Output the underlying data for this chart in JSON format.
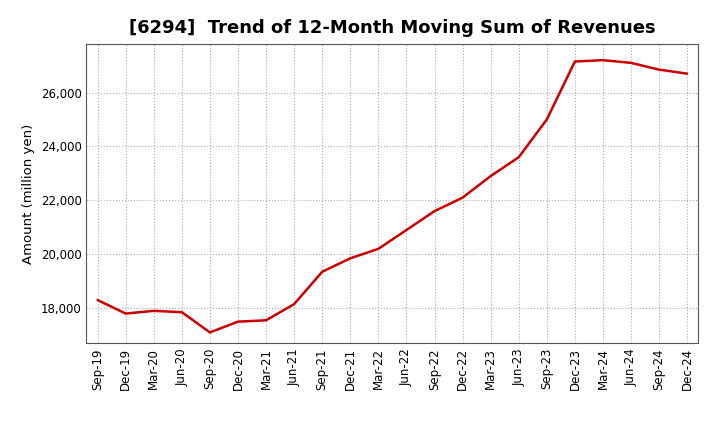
{
  "title": "[6294]  Trend of 12-Month Moving Sum of Revenues",
  "ylabel": "Amount (million yen)",
  "line_color": "#cc0000",
  "background_color": "#ffffff",
  "plot_bg_color": "#ffffff",
  "grid_color": "#aaaaaa",
  "xlabels": [
    "Sep-19",
    "Dec-19",
    "Mar-20",
    "Jun-20",
    "Sep-20",
    "Dec-20",
    "Mar-21",
    "Jun-21",
    "Sep-21",
    "Dec-21",
    "Mar-22",
    "Jun-22",
    "Sep-22",
    "Dec-22",
    "Mar-23",
    "Jun-23",
    "Sep-23",
    "Dec-23",
    "Mar-24",
    "Jun-24",
    "Sep-24",
    "Dec-24"
  ],
  "values": [
    18300,
    17800,
    17900,
    17850,
    17100,
    17500,
    17550,
    18150,
    19350,
    19850,
    20200,
    20900,
    21600,
    22100,
    22900,
    23600,
    25000,
    27150,
    27200,
    27100,
    26850,
    26700
  ],
  "ylim": [
    16700,
    27800
  ],
  "yticks": [
    18000,
    20000,
    22000,
    24000,
    26000
  ],
  "title_fontsize": 13,
  "axis_fontsize": 9.5,
  "tick_fontsize": 8.5
}
